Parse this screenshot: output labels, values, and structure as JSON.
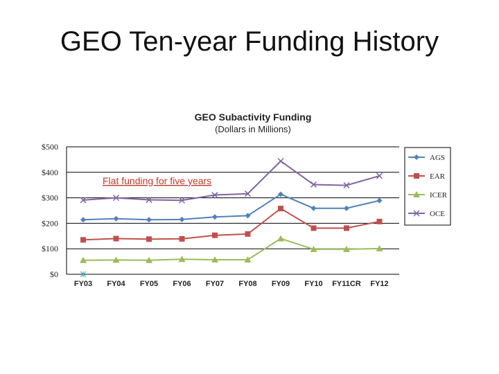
{
  "slide": {
    "title": "GEO Ten-year Funding History"
  },
  "chart_data": {
    "type": "line",
    "title": "GEO Subactivity Funding",
    "subtitle": "(Dollars in Millions)",
    "categories": [
      "FY03",
      "FY04",
      "FY05",
      "FY06",
      "FY07",
      "FY08",
      "FY09",
      "FY10",
      "FY11CR",
      "FY12"
    ],
    "y_ticks": [
      "$0",
      "$100",
      "$200",
      "$300",
      "$400",
      "$500"
    ],
    "ylim": [
      0,
      500
    ],
    "grid": true,
    "legend_position": "right",
    "annotation": "Flat funding for five years",
    "series": [
      {
        "name": "AGS",
        "color": "#4f81bd",
        "marker": "diamond",
        "values": [
          214,
          218,
          214,
          215,
          225,
          230,
          314,
          259,
          259,
          289
        ]
      },
      {
        "name": "EAR",
        "color": "#c0504d",
        "marker": "square",
        "values": [
          135,
          140,
          138,
          139,
          153,
          158,
          258,
          181,
          181,
          207
        ]
      },
      {
        "name": "ICER",
        "color": "#9bbb59",
        "marker": "triangle",
        "values": [
          55,
          56,
          55,
          59,
          57,
          57,
          140,
          98,
          98,
          101
        ]
      },
      {
        "name": "OCE",
        "color": "#8064a2",
        "marker": "x",
        "values": [
          291,
          300,
          292,
          290,
          311,
          316,
          444,
          352,
          349,
          386
        ]
      },
      {
        "name": "",
        "color": "#4bacc6",
        "marker": "star",
        "values": [
          0,
          null,
          null,
          null,
          null,
          null,
          null,
          null,
          null,
          null
        ]
      }
    ]
  }
}
